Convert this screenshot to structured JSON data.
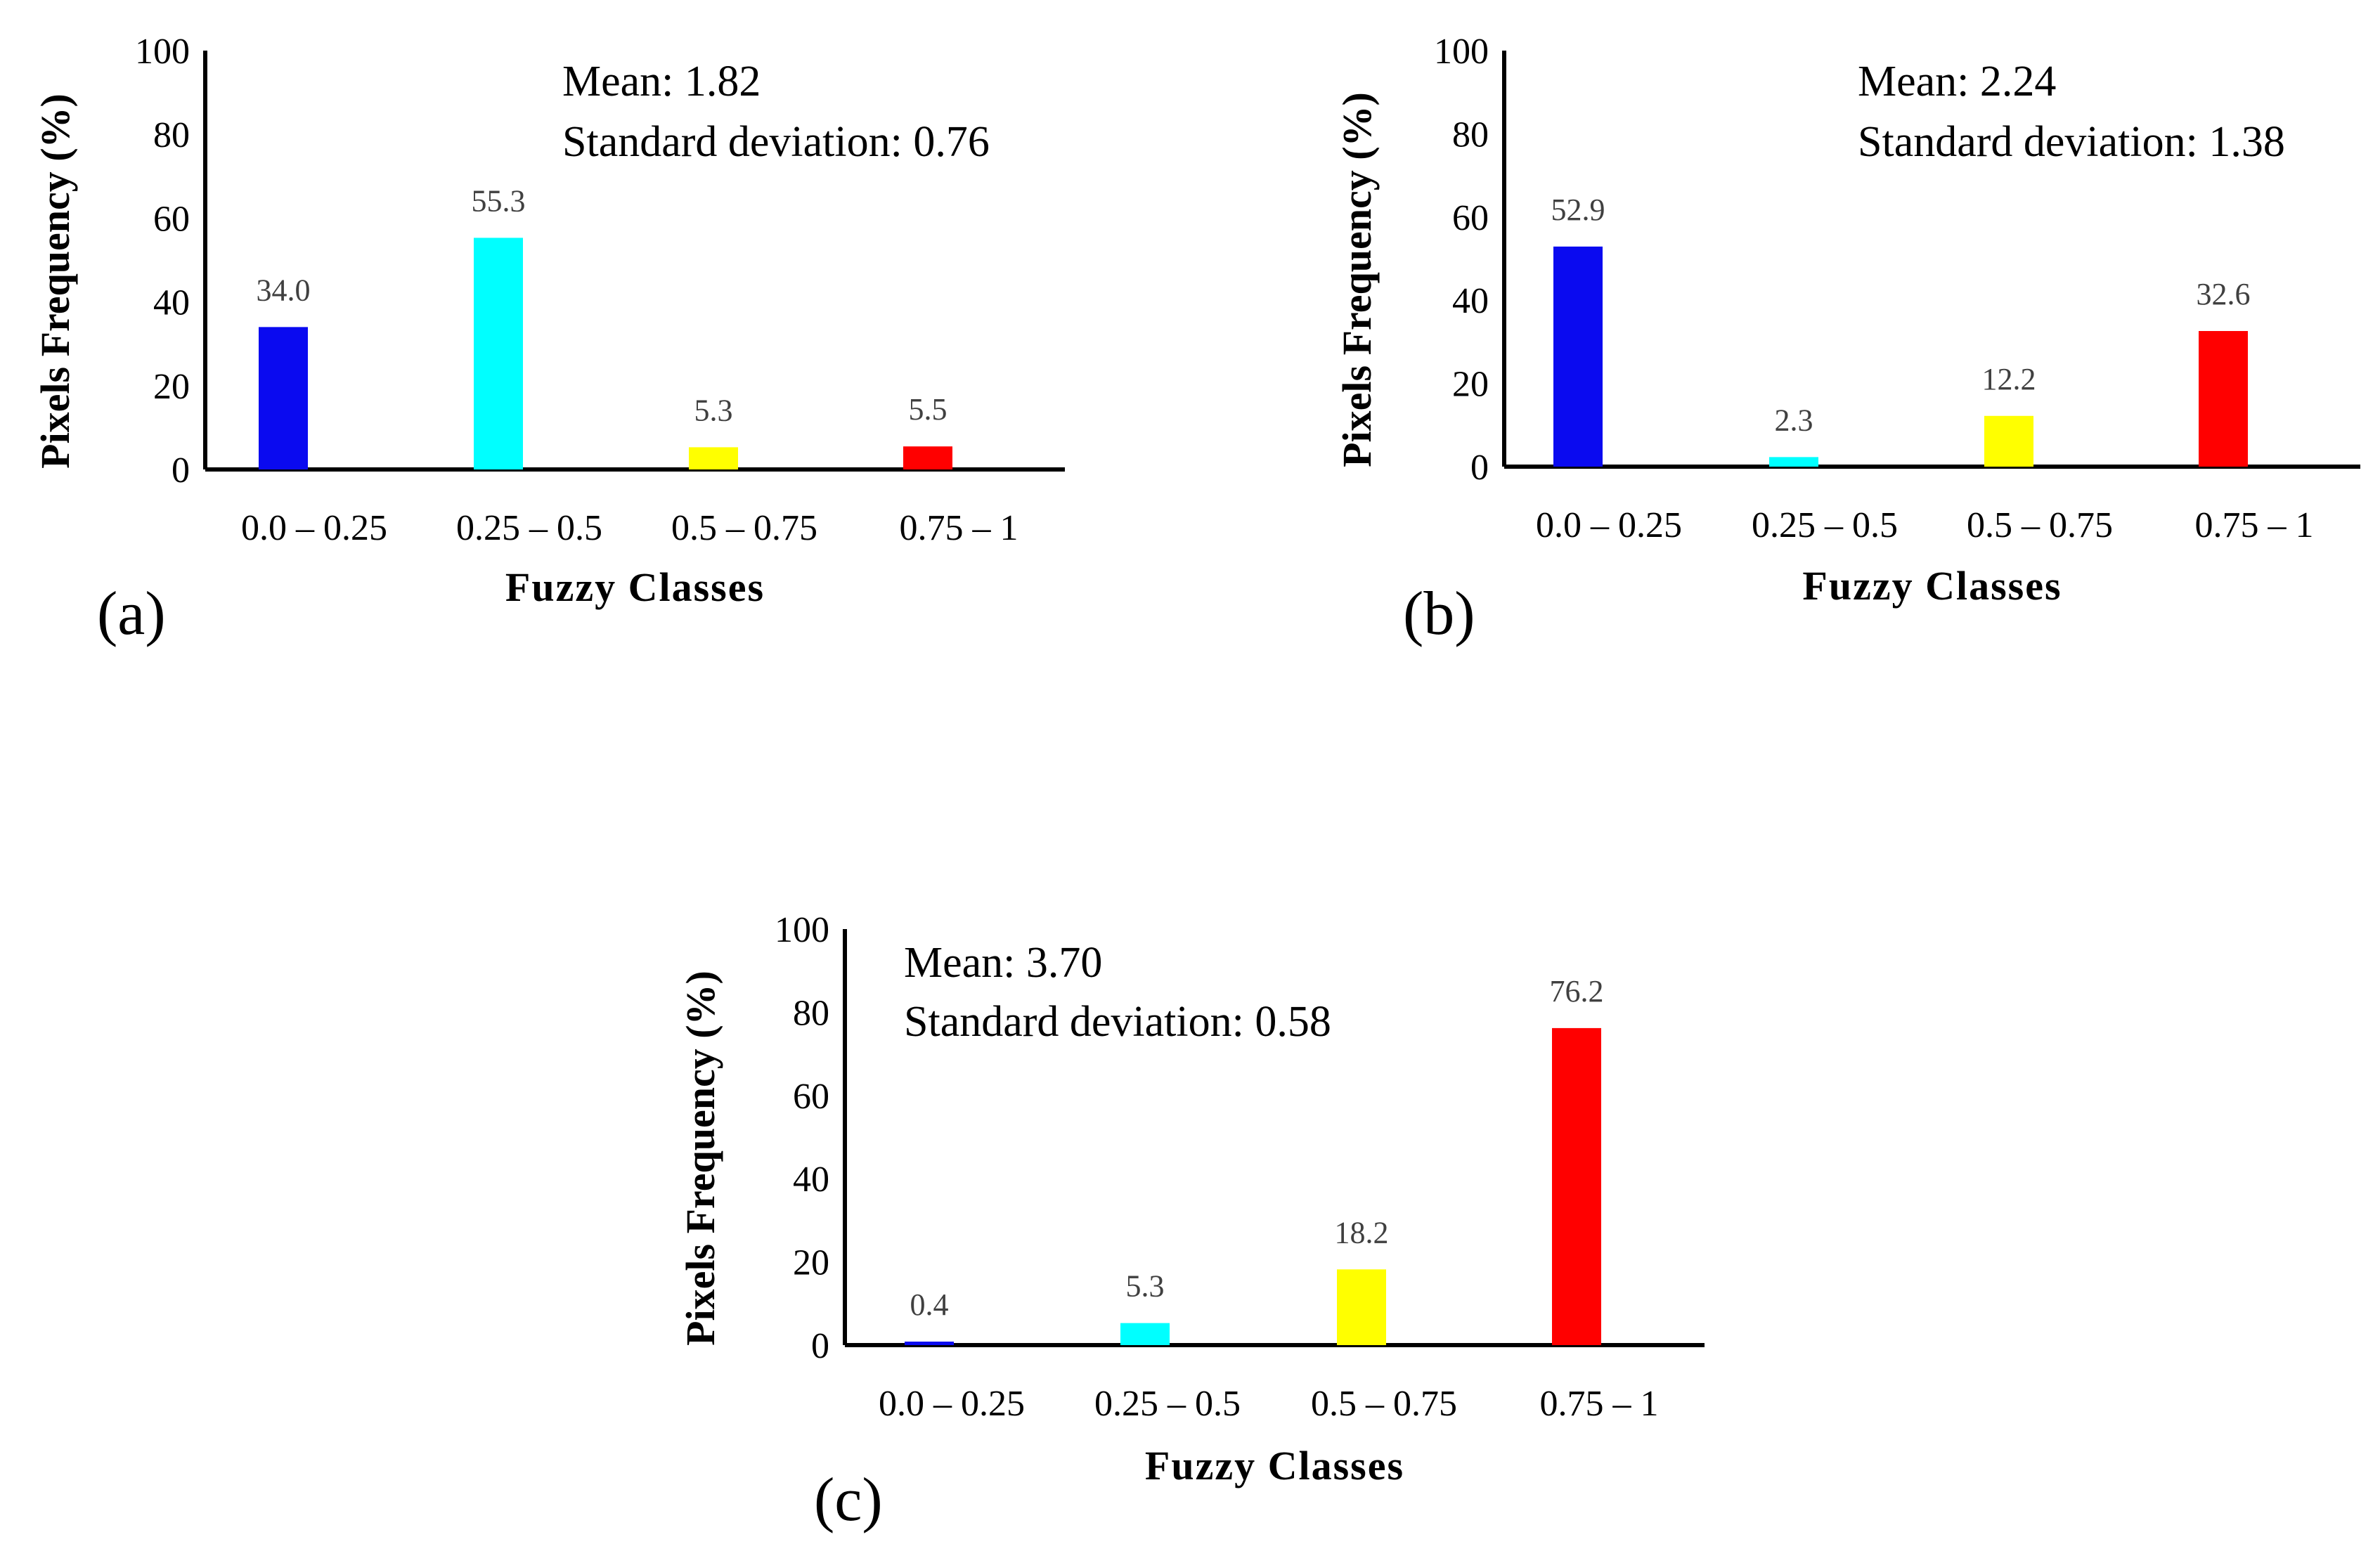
{
  "chart_data": [
    {
      "type": "bar",
      "panel_label": "(a)",
      "categories": [
        "0.0 – 0.25",
        "0.25 – 0.5",
        "0.5 – 0.75",
        "0.75 – 1"
      ],
      "values": [
        34.0,
        55.3,
        5.3,
        5.5
      ],
      "value_labels": [
        "34.0",
        "55.3",
        "5.3",
        "5.5"
      ],
      "colors": [
        "#0a0af0",
        "#00ffff",
        "#ffff00",
        "#ff0000"
      ],
      "xlabel": "Fuzzy Classes",
      "ylabel": "Pixels Frequency (%)",
      "ylim": [
        0,
        100
      ],
      "yticks": [
        "0",
        "20",
        "40",
        "60",
        "80",
        "100"
      ],
      "annotation": [
        "Mean: 1.82",
        "Standard deviation: 0.76"
      ]
    },
    {
      "type": "bar",
      "panel_label": "(b)",
      "categories": [
        "0.0 – 0.25",
        "0.25 – 0.5",
        "0.5 – 0.75",
        "0.75 – 1"
      ],
      "values": [
        52.9,
        2.3,
        12.2,
        32.6
      ],
      "value_labels": [
        "52.9",
        "2.3",
        "12.2",
        "32.6"
      ],
      "colors": [
        "#0a0af0",
        "#00ffff",
        "#ffff00",
        "#ff0000"
      ],
      "xlabel": "Fuzzy Classes",
      "ylabel": "Pixels Frequency (%)",
      "ylim": [
        0,
        100
      ],
      "yticks": [
        "0",
        "20",
        "40",
        "60",
        "80",
        "100"
      ],
      "annotation": [
        "Mean: 2.24",
        "Standard deviation: 1.38"
      ]
    },
    {
      "type": "bar",
      "panel_label": "(c)",
      "categories": [
        "0.0 – 0.25",
        "0.25 – 0.5",
        "0.5 – 0.75",
        "0.75 – 1"
      ],
      "values": [
        0.4,
        5.3,
        18.2,
        76.2
      ],
      "value_labels": [
        "0.4",
        "5.3",
        "18.2",
        "76.2"
      ],
      "colors": [
        "#0a0af0",
        "#00ffff",
        "#ffff00",
        "#ff0000"
      ],
      "xlabel": "Fuzzy Classes",
      "ylabel": "Pixels Frequency  (%)",
      "ylim": [
        0,
        100
      ],
      "yticks": [
        "0",
        "20",
        "40",
        "60",
        "80",
        "100"
      ],
      "annotation": [
        "Mean: 3.70",
        "Standard deviation: 0.58"
      ]
    }
  ]
}
